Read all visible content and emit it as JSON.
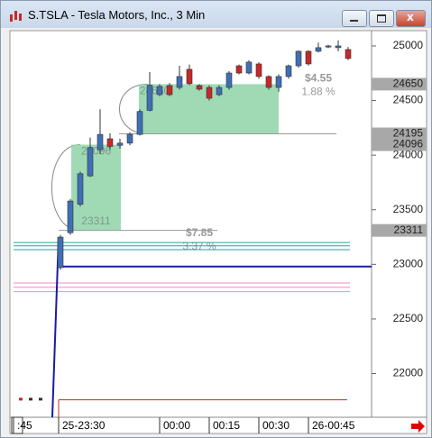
{
  "window": {
    "title": "S.TSLA - Tesla Motors, Inc., 3 Min"
  },
  "chart_data": {
    "type": "candlestick",
    "ylim": [
      21600,
      25140
    ],
    "yticks": [
      22000,
      22500,
      23000,
      23500,
      24000,
      24500,
      25000
    ],
    "xticks": [
      ":45",
      "25-23:30",
      "00:00",
      "00:15",
      "00:30",
      "26-00:45"
    ],
    "up_color": "#3f6fb5",
    "down_color": "#c62828",
    "candles": {
      "open": [
        22970,
        23290,
        23550,
        23810,
        24050,
        24150,
        24090,
        24110,
        24190,
        24410,
        24554,
        24637,
        24620,
        24786,
        24637,
        24620,
        24554,
        24620,
        24818,
        24752,
        24835,
        24720,
        24620,
        24720,
        24818,
        24951,
        24951,
        24990,
        24984,
        24967
      ],
      "high": [
        23270,
        23600,
        23850,
        24160,
        24420,
        24200,
        24150,
        24210,
        24420,
        24760,
        24650,
        24660,
        24818,
        24830,
        24650,
        24640,
        24640,
        24770,
        24830,
        24870,
        24850,
        24730,
        24740,
        24830,
        24960,
        24960,
        25030,
        25010,
        25050,
        24990
      ],
      "low": [
        22950,
        23270,
        23530,
        23800,
        24010,
        24050,
        24060,
        24090,
        24180,
        24400,
        24540,
        24540,
        24600,
        24640,
        24590,
        24500,
        24540,
        24600,
        24740,
        24740,
        24700,
        24600,
        24580,
        24700,
        24800,
        24820,
        24940,
        24980,
        24951,
        24870
      ],
      "close": [
        23250,
        23580,
        23830,
        24070,
        24190,
        24080,
        24110,
        24190,
        24400,
        24640,
        24629,
        24554,
        24720,
        24654,
        24604,
        24521,
        24620,
        24752,
        24752,
        24852,
        24720,
        24620,
        24720,
        24818,
        24951,
        24835,
        24984,
        25000,
        25000,
        24885
      ]
    },
    "early_marks": [
      21770,
      21770,
      21770
    ],
    "levels": [
      {
        "value": 23200,
        "color": "#2aa198"
      },
      {
        "value": 23170,
        "color": "#2aa198"
      },
      {
        "value": 23135,
        "color": "#2aa198"
      },
      {
        "value": 22980,
        "color": "#1a1aa8"
      },
      {
        "value": 22830,
        "color": "#e58fc8"
      },
      {
        "value": 22790,
        "color": "#e58fc8"
      },
      {
        "value": 22750,
        "color": "#e58fc8"
      },
      {
        "value": 21760,
        "color": "#c62828"
      },
      {
        "value": 23311,
        "color": "#999999"
      },
      {
        "value": 24195,
        "color": "#999999"
      }
    ],
    "price_labels": [
      24650,
      24195,
      24096,
      23311
    ],
    "ranges": [
      {
        "low": 23311,
        "high": 24096,
        "low_label": "23311",
        "high_label": "24096",
        "change_label": "$7.85",
        "pct_label": "3.37 %"
      },
      {
        "low": 24195,
        "high": 24650,
        "high_label": "24650",
        "change_label": "$4.55",
        "pct_label": "1.88 %"
      }
    ]
  }
}
